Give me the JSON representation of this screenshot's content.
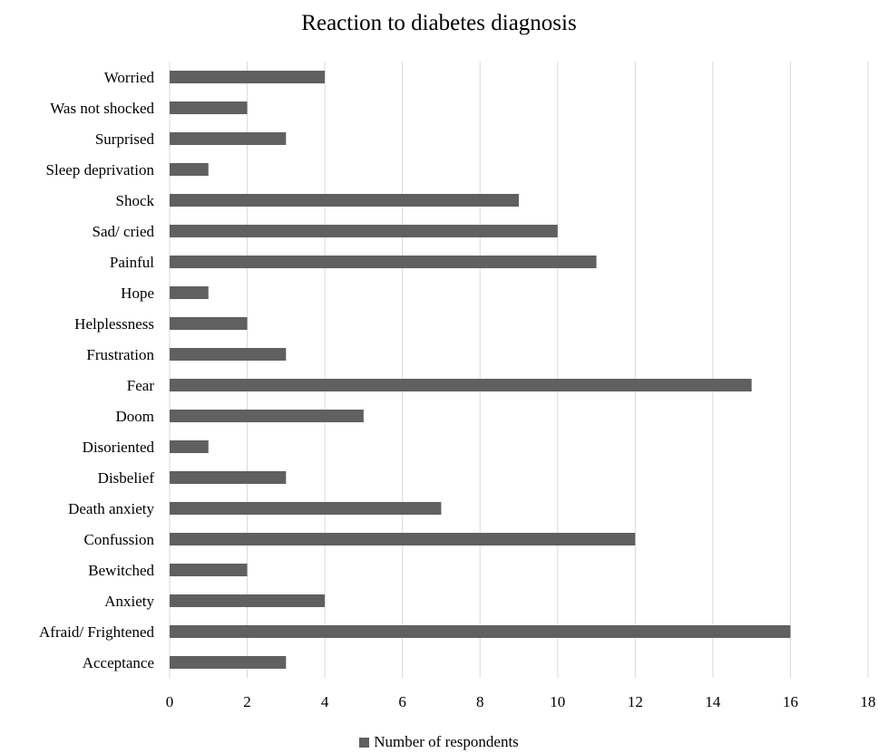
{
  "chart_data": {
    "type": "bar",
    "orientation": "horizontal",
    "title": "Reaction to diabetes diagnosis",
    "categories": [
      "Worried",
      "Was not shocked",
      "Surprised",
      "Sleep deprivation",
      "Shock",
      "Sad/ cried",
      "Painful",
      "Hope",
      "Helplessness",
      "Frustration",
      "Fear",
      "Doom",
      "Disoriented",
      "Disbelief",
      "Death anxiety",
      "Confussion",
      "Bewitched",
      "Anxiety",
      "Afraid/ Frightened",
      "Acceptance"
    ],
    "series": [
      {
        "name": "Number of respondents",
        "values": [
          4,
          2,
          3,
          1,
          9,
          10,
          11,
          1,
          2,
          3,
          15,
          5,
          1,
          3,
          7,
          12,
          2,
          4,
          16,
          3
        ]
      }
    ],
    "xlim": [
      0,
      18
    ],
    "xticks": [
      "0",
      "2",
      "4",
      "6",
      "8",
      "10",
      "12",
      "14",
      "16",
      "18"
    ],
    "xlabel": "",
    "ylabel": "",
    "grid": "vertical",
    "legend": "bottom-center",
    "colors": {
      "bar": "#606060",
      "grid": "#d9d9d9"
    }
  }
}
